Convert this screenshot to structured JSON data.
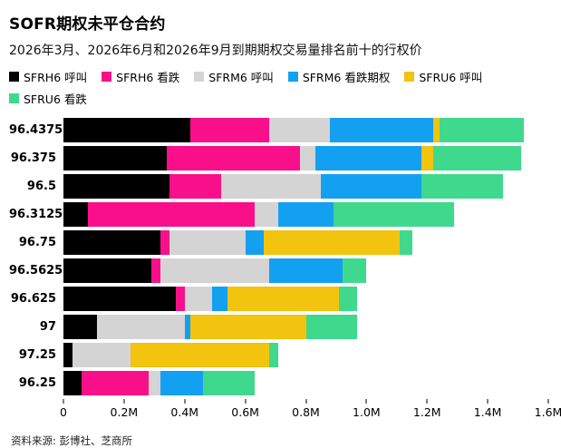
{
  "title": "SOFR期权未平仓合约",
  "subtitle": "2026年3月、2026年6月和2026年9月到期期权交易量排名前十的行权价",
  "source": "资料来源: 彭博社、芝商所",
  "colors": {
    "background": "#ffffff",
    "text": "#000000",
    "sfrh6_call": "#000000",
    "sfrh6_put": "#fa0f8a",
    "sfrm6_call": "#d4d4d4",
    "sfrm6_put": "#14a0f0",
    "sfru6_call": "#f2c30f",
    "sfru6_put": "#3fd98e"
  },
  "chart_data": {
    "type": "bar",
    "orientation": "horizontal",
    "stacked": true,
    "title": "SOFR期权未平仓合约",
    "xlabel": "",
    "ylabel": "",
    "xlim": [
      0,
      1.6
    ],
    "unit": "M",
    "grid": false,
    "legend_position": "top",
    "categories": [
      "96.4375",
      "96.375",
      "96.5",
      "96.3125",
      "96.75",
      "96.5625",
      "96.625",
      "97",
      "97.25",
      "96.25"
    ],
    "x_ticks": [
      "0",
      "0.2M",
      "0.4M",
      "0.6M",
      "0.8M",
      "1.0M",
      "1.2M",
      "1.4M",
      "1.6M"
    ],
    "series": [
      {
        "name": "SFRH6 呼叫",
        "color": "#000000",
        "values": [
          0.42,
          0.34,
          0.35,
          0.08,
          0.32,
          0.29,
          0.37,
          0.11,
          0.03,
          0.06
        ]
      },
      {
        "name": "SFRH6 看跌",
        "color": "#fa0f8a",
        "values": [
          0.26,
          0.44,
          0.17,
          0.55,
          0.03,
          0.03,
          0.03,
          0,
          0,
          0.22
        ]
      },
      {
        "name": "SFRM6 呼叫",
        "color": "#d4d4d4",
        "values": [
          0.2,
          0.05,
          0.33,
          0.08,
          0.25,
          0.36,
          0.09,
          0.29,
          0.19,
          0.04
        ]
      },
      {
        "name": "SFRM6 看跌期权",
        "color": "#14a0f0",
        "values": [
          0.34,
          0.35,
          0.33,
          0.18,
          0.06,
          0.24,
          0.05,
          0.02,
          0,
          0.14
        ]
      },
      {
        "name": "SFRU6 呼叫",
        "color": "#f2c30f",
        "values": [
          0.02,
          0.04,
          0,
          0,
          0.45,
          0,
          0.37,
          0.38,
          0.46,
          0
        ]
      },
      {
        "name": "SFRU6 看跌",
        "color": "#3fd98e",
        "values": [
          0.28,
          0.29,
          0.27,
          0.4,
          0.04,
          0.08,
          0.06,
          0.17,
          0.03,
          0.17
        ]
      }
    ],
    "totals": [
      1.52,
      1.51,
      1.45,
      1.29,
      1.15,
      1.0,
      0.97,
      0.97,
      0.71,
      0.63
    ]
  }
}
